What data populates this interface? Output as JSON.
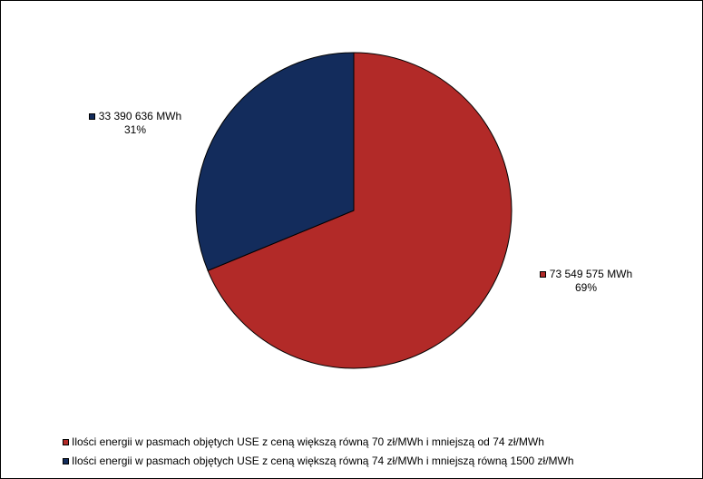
{
  "chart_data": {
    "type": "pie",
    "title": "",
    "slices": [
      {
        "name": "Ilości energii w pasmach objętych USE z ceną większą równą 70 zł/MWh i mniejszą od 74 zł/MWh",
        "value": 73549575,
        "value_label": "73 549 575 MWh",
        "percent_label": "69%",
        "color": "#B22A28"
      },
      {
        "name": "Ilości energii w pasmach objętych USE z ceną większą równą 74 zł/MWh i mniejszą równą 1500 zł/MWh",
        "value": 33390636,
        "value_label": "33 390 636 MWh",
        "percent_label": "31%",
        "color": "#132C5C"
      }
    ],
    "start_angle_deg": 0,
    "direction": "clockwise",
    "legend_placement": "bottom"
  }
}
